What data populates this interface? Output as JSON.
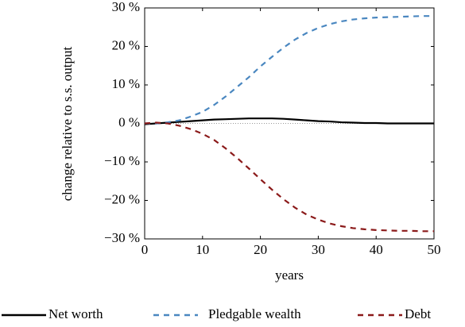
{
  "chart_data": {
    "type": "line",
    "ylabel": "change relative to s.s. output",
    "xlabel": "years",
    "x": [
      0,
      2,
      4,
      6,
      8,
      10,
      12,
      14,
      16,
      18,
      20,
      22,
      24,
      26,
      28,
      30,
      32,
      34,
      36,
      38,
      40,
      42,
      44,
      46,
      48,
      50
    ],
    "xlim": [
      0,
      50
    ],
    "xticks": [
      0,
      10,
      20,
      30,
      40,
      50
    ],
    "ylim": [
      -30,
      30
    ],
    "yticks": [
      {
        "value": -30,
        "label": "−30 %"
      },
      {
        "value": -20,
        "label": "−20 %"
      },
      {
        "value": -10,
        "label": "−10 %"
      },
      {
        "value": 0,
        "label": "0 %"
      },
      {
        "value": 10,
        "label": "10 %"
      },
      {
        "value": 20,
        "label": "20 %"
      },
      {
        "value": 30,
        "label": "30 %"
      }
    ],
    "series": [
      {
        "name": "Net worth",
        "color": "#000000",
        "dash": "solid",
        "values": [
          -0.2,
          0,
          0.2,
          0.4,
          0.6,
          0.8,
          1,
          1.1,
          1.2,
          1.3,
          1.3,
          1.3,
          1.2,
          1,
          0.8,
          0.6,
          0.5,
          0.3,
          0.2,
          0.1,
          0.1,
          0,
          0,
          0,
          0,
          0
        ]
      },
      {
        "name": "Pledgable wealth",
        "color": "#4a87c0",
        "dash": "dashed",
        "values": [
          0,
          0,
          0.3,
          0.8,
          1.8,
          3,
          4.8,
          7,
          9.5,
          12,
          14.8,
          17.3,
          19.7,
          21.8,
          23.5,
          24.8,
          25.8,
          26.5,
          27,
          27.3,
          27.5,
          27.6,
          27.7,
          27.8,
          27.9,
          27.9
        ]
      },
      {
        "name": "Debt",
        "color": "#8b1a1a",
        "dash": "dashed",
        "values": [
          0,
          0.2,
          0,
          -0.6,
          -1.5,
          -2.7,
          -4.3,
          -6.5,
          -9,
          -11.7,
          -14.5,
          -17.2,
          -19.7,
          -21.9,
          -23.7,
          -25,
          -26,
          -26.7,
          -27.2,
          -27.5,
          -27.7,
          -27.8,
          -27.9,
          -27.9,
          -28,
          -28
        ]
      }
    ],
    "legend": "bottom"
  }
}
